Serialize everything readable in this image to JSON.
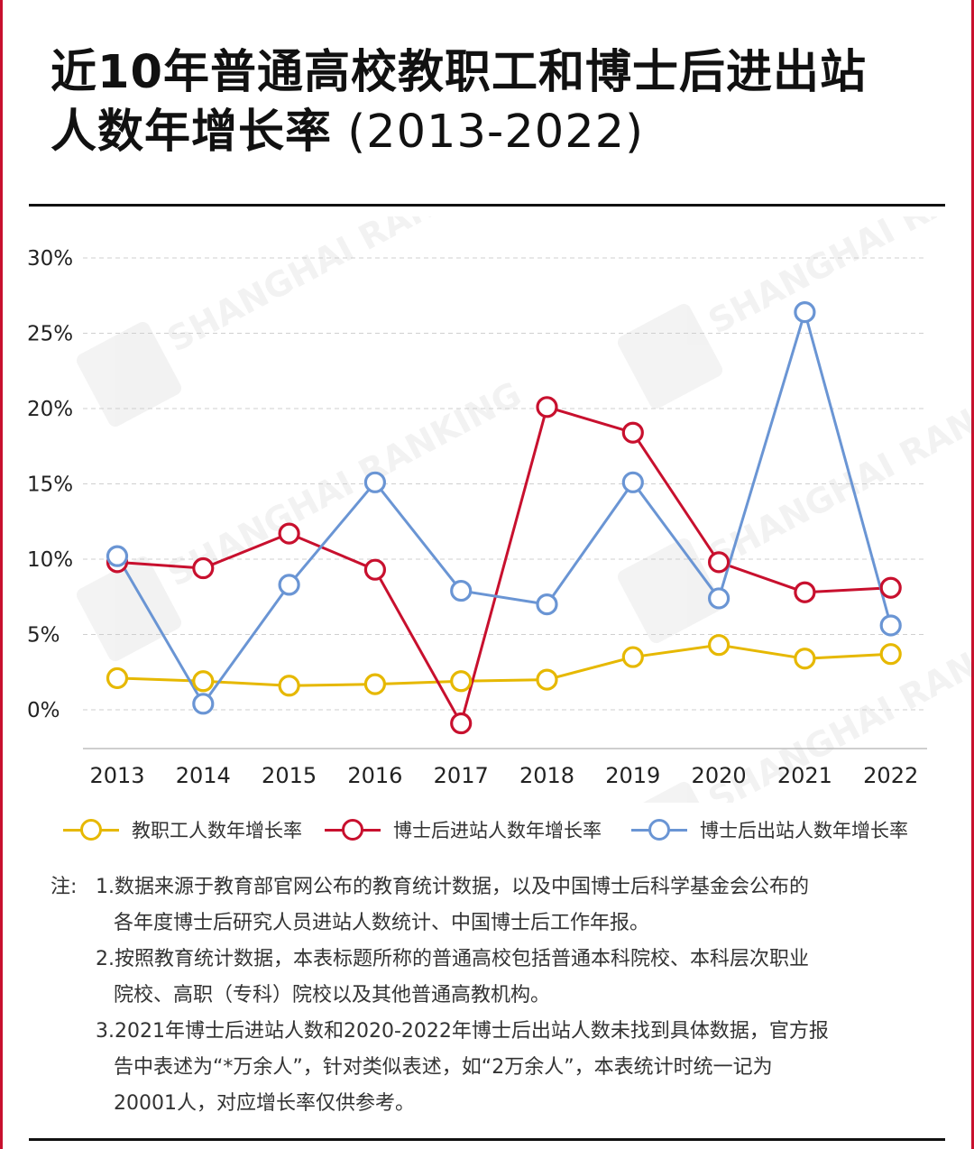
{
  "title": {
    "line1": "近10年普通高校教职工和博士后进出站",
    "line2_main": "人数年增长率",
    "line2_sub": " (2013-2022)"
  },
  "watermark": "SHANGHAI RANKING",
  "chart_data": {
    "type": "line",
    "x": [
      "2013",
      "2014",
      "2015",
      "2016",
      "2017",
      "2018",
      "2019",
      "2020",
      "2021",
      "2022"
    ],
    "y_ticks": [
      "30%",
      "25%",
      "20%",
      "15%",
      "10%",
      "5%",
      "0%"
    ],
    "ylim": [
      -2.5,
      30
    ],
    "grid": true,
    "legend_position": "bottom",
    "series": [
      {
        "name": "教职工人数年增长率",
        "color": "#e6b800",
        "values": [
          2.1,
          1.9,
          1.6,
          1.7,
          1.9,
          2.0,
          3.5,
          4.3,
          3.4,
          3.7
        ]
      },
      {
        "name": "博士后进站人数年增长率",
        "color": "#c8102e",
        "values": [
          9.8,
          9.4,
          11.7,
          9.3,
          -0.9,
          20.1,
          18.4,
          9.8,
          7.8,
          8.1
        ]
      },
      {
        "name": "博士后出站人数年增长率",
        "color": "#6a95d4",
        "values": [
          10.2,
          0.4,
          8.3,
          15.1,
          7.9,
          7.0,
          15.1,
          7.4,
          26.4,
          5.6
        ]
      }
    ]
  },
  "notes": {
    "label": "注:",
    "items": [
      {
        "line1": "1.数据来源于教育部官网公布的教育统计数据，以及中国博士后科学基金会公布的",
        "line2": "各年度博士后研究人员进站人数统计、中国博士后工作年报。"
      },
      {
        "line1": "2.按照教育统计数据，本表标题所称的普通高校包括普通本科院校、本科层次职业",
        "line2": "院校、高职（专科）院校以及其他普通高教机构。"
      },
      {
        "line1": "3.2021年博士后进站人数和2020-2022年博士后出站人数未找到具体数据，官方报",
        "line2": "告中表述为“*万余人”，针对类似表述，如“2万余人”，本表统计时统一记为",
        "line3": "20001人，对应增长率仅供参考。"
      }
    ]
  }
}
